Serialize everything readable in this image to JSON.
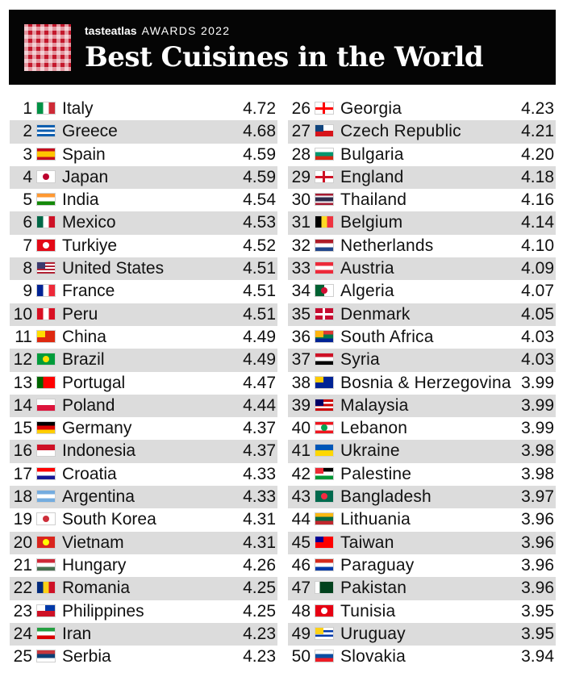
{
  "header": {
    "brand_name": "tasteatlas",
    "brand_sub": "AWARDS 2022",
    "title": "Best Cuisines in the World"
  },
  "chart_data": {
    "type": "table",
    "title": "Best Cuisines in the World",
    "columns": [
      "rank",
      "country",
      "score"
    ],
    "rows": [
      {
        "rank": 1,
        "country": "Italy",
        "score": "4.72",
        "flag": [
          "#009246",
          "#ffffff",
          "#ce2b37"
        ],
        "dir": "v"
      },
      {
        "rank": 2,
        "country": "Greece",
        "score": "4.68",
        "flag": [
          "#0d5eaf",
          "#ffffff",
          "#0d5eaf",
          "#ffffff",
          "#0d5eaf"
        ],
        "dir": "h"
      },
      {
        "rank": 3,
        "country": "Spain",
        "score": "4.59",
        "flag": [
          "#c60b1e",
          "#ffc400",
          "#ffc400",
          "#c60b1e"
        ],
        "dir": "h"
      },
      {
        "rank": 4,
        "country": "Japan",
        "score": "4.59",
        "flag": [
          "#ffffff"
        ],
        "dir": "h",
        "disc": "#bc002d"
      },
      {
        "rank": 5,
        "country": "India",
        "score": "4.54",
        "flag": [
          "#ff9933",
          "#ffffff",
          "#138808"
        ],
        "dir": "h"
      },
      {
        "rank": 6,
        "country": "Mexico",
        "score": "4.53",
        "flag": [
          "#006847",
          "#ffffff",
          "#ce1126"
        ],
        "dir": "v"
      },
      {
        "rank": 7,
        "country": "Turkiye",
        "score": "4.52",
        "flag": [
          "#e30a17"
        ],
        "dir": "h",
        "disc": "#ffffff"
      },
      {
        "rank": 8,
        "country": "United States",
        "score": "4.51",
        "flag": [
          "#b22234",
          "#ffffff",
          "#b22234",
          "#ffffff",
          "#b22234",
          "#ffffff",
          "#b22234"
        ],
        "dir": "h",
        "canton": "#3c3b6e"
      },
      {
        "rank": 9,
        "country": "France",
        "score": "4.51",
        "flag": [
          "#002395",
          "#ffffff",
          "#ed2939"
        ],
        "dir": "v"
      },
      {
        "rank": 10,
        "country": "Peru",
        "score": "4.51",
        "flag": [
          "#d91023",
          "#ffffff",
          "#d91023"
        ],
        "dir": "v"
      },
      {
        "rank": 11,
        "country": "China",
        "score": "4.49",
        "flag": [
          "#de2910"
        ],
        "dir": "h",
        "canton": "#ffde00"
      },
      {
        "rank": 12,
        "country": "Brazil",
        "score": "4.49",
        "flag": [
          "#009c3b"
        ],
        "dir": "h",
        "disc": "#ffdf00"
      },
      {
        "rank": 13,
        "country": "Portugal",
        "score": "4.47",
        "flag": [
          "#006600",
          "#ff0000",
          "#ff0000"
        ],
        "dir": "v"
      },
      {
        "rank": 14,
        "country": "Poland",
        "score": "4.44",
        "flag": [
          "#ffffff",
          "#dc143c"
        ],
        "dir": "h"
      },
      {
        "rank": 15,
        "country": "Germany",
        "score": "4.37",
        "flag": [
          "#000000",
          "#dd0000",
          "#ffce00"
        ],
        "dir": "h"
      },
      {
        "rank": 16,
        "country": "Indonesia",
        "score": "4.37",
        "flag": [
          "#ce1126",
          "#ffffff"
        ],
        "dir": "h"
      },
      {
        "rank": 17,
        "country": "Croatia",
        "score": "4.33",
        "flag": [
          "#ff0000",
          "#ffffff",
          "#171796"
        ],
        "dir": "h"
      },
      {
        "rank": 18,
        "country": "Argentina",
        "score": "4.33",
        "flag": [
          "#74acdf",
          "#ffffff",
          "#74acdf"
        ],
        "dir": "h"
      },
      {
        "rank": 19,
        "country": "South Korea",
        "score": "4.31",
        "flag": [
          "#ffffff"
        ],
        "dir": "h",
        "disc": "#cd2e3a"
      },
      {
        "rank": 20,
        "country": "Vietnam",
        "score": "4.31",
        "flag": [
          "#da251d"
        ],
        "dir": "h",
        "disc": "#ffff00"
      },
      {
        "rank": 21,
        "country": "Hungary",
        "score": "4.26",
        "flag": [
          "#ce2939",
          "#ffffff",
          "#477050"
        ],
        "dir": "h"
      },
      {
        "rank": 22,
        "country": "Romania",
        "score": "4.25",
        "flag": [
          "#002b7f",
          "#fcd116",
          "#ce1126"
        ],
        "dir": "v"
      },
      {
        "rank": 23,
        "country": "Philippines",
        "score": "4.25",
        "flag": [
          "#0038a8",
          "#ce1126"
        ],
        "dir": "h",
        "canton": "#ffffff"
      },
      {
        "rank": 24,
        "country": "Iran",
        "score": "4.23",
        "flag": [
          "#239f40",
          "#ffffff",
          "#da0000"
        ],
        "dir": "h"
      },
      {
        "rank": 25,
        "country": "Serbia",
        "score": "4.23",
        "flag": [
          "#c6363c",
          "#0c4076",
          "#ffffff"
        ],
        "dir": "h"
      },
      {
        "rank": 26,
        "country": "Georgia",
        "score": "4.23",
        "flag": [
          "#ffffff"
        ],
        "dir": "h",
        "cross": "#ff0000"
      },
      {
        "rank": 27,
        "country": "Czech Republic",
        "score": "4.21",
        "flag": [
          "#ffffff",
          "#d7141a"
        ],
        "dir": "h",
        "canton": "#11457e"
      },
      {
        "rank": 28,
        "country": "Bulgaria",
        "score": "4.20",
        "flag": [
          "#ffffff",
          "#00966e",
          "#d62612"
        ],
        "dir": "h"
      },
      {
        "rank": 29,
        "country": "England",
        "score": "4.18",
        "flag": [
          "#ffffff"
        ],
        "dir": "h",
        "cross": "#ce1124"
      },
      {
        "rank": 30,
        "country": "Thailand",
        "score": "4.16",
        "flag": [
          "#a51931",
          "#f4f5f8",
          "#2d2a4a",
          "#2d2a4a",
          "#f4f5f8",
          "#a51931"
        ],
        "dir": "h"
      },
      {
        "rank": 31,
        "country": "Belgium",
        "score": "4.14",
        "flag": [
          "#000000",
          "#fdda24",
          "#ef3340"
        ],
        "dir": "v"
      },
      {
        "rank": 32,
        "country": "Netherlands",
        "score": "4.10",
        "flag": [
          "#ae1c28",
          "#ffffff",
          "#21468b"
        ],
        "dir": "h"
      },
      {
        "rank": 33,
        "country": "Austria",
        "score": "4.09",
        "flag": [
          "#ed2939",
          "#ffffff",
          "#ed2939"
        ],
        "dir": "h"
      },
      {
        "rank": 34,
        "country": "Algeria",
        "score": "4.07",
        "flag": [
          "#006233",
          "#ffffff"
        ],
        "dir": "v",
        "disc": "#d21034"
      },
      {
        "rank": 35,
        "country": "Denmark",
        "score": "4.05",
        "flag": [
          "#c60c30"
        ],
        "dir": "h",
        "cross": "#ffffff"
      },
      {
        "rank": 36,
        "country": "South Africa",
        "score": "4.03",
        "flag": [
          "#de3831",
          "#007a4d",
          "#002395"
        ],
        "dir": "h",
        "canton": "#ffb612"
      },
      {
        "rank": 37,
        "country": "Syria",
        "score": "4.03",
        "flag": [
          "#ce1126",
          "#ffffff",
          "#000000"
        ],
        "dir": "h"
      },
      {
        "rank": 38,
        "country": "Bosnia & Herzegovina",
        "score": "3.99",
        "flag": [
          "#002395"
        ],
        "dir": "h",
        "canton": "#fecb00"
      },
      {
        "rank": 39,
        "country": "Malaysia",
        "score": "3.99",
        "flag": [
          "#cc0001",
          "#ffffff",
          "#cc0001",
          "#ffffff",
          "#cc0001"
        ],
        "dir": "h",
        "canton": "#010066"
      },
      {
        "rank": 40,
        "country": "Lebanon",
        "score": "3.99",
        "flag": [
          "#ee161f",
          "#ffffff",
          "#ffffff",
          "#ee161f"
        ],
        "dir": "h",
        "disc": "#00a651"
      },
      {
        "rank": 41,
        "country": "Ukraine",
        "score": "3.98",
        "flag": [
          "#0057b7",
          "#ffd700"
        ],
        "dir": "h"
      },
      {
        "rank": 42,
        "country": "Palestine",
        "score": "3.98",
        "flag": [
          "#000000",
          "#ffffff",
          "#009736"
        ],
        "dir": "h",
        "canton": "#ee2a35"
      },
      {
        "rank": 43,
        "country": "Bangladesh",
        "score": "3.97",
        "flag": [
          "#006a4e"
        ],
        "dir": "h",
        "disc": "#f42a41"
      },
      {
        "rank": 44,
        "country": "Lithuania",
        "score": "3.96",
        "flag": [
          "#fdb913",
          "#006a44",
          "#c1272d"
        ],
        "dir": "h"
      },
      {
        "rank": 45,
        "country": "Taiwan",
        "score": "3.96",
        "flag": [
          "#fe0000"
        ],
        "dir": "h",
        "canton": "#000095"
      },
      {
        "rank": 46,
        "country": "Paraguay",
        "score": "3.96",
        "flag": [
          "#d52b1e",
          "#ffffff",
          "#0038a8"
        ],
        "dir": "h"
      },
      {
        "rank": 47,
        "country": "Pakistan",
        "score": "3.96",
        "flag": [
          "#ffffff",
          "#01411c",
          "#01411c",
          "#01411c"
        ],
        "dir": "v"
      },
      {
        "rank": 48,
        "country": "Tunisia",
        "score": "3.95",
        "flag": [
          "#e70013"
        ],
        "dir": "h",
        "disc": "#ffffff"
      },
      {
        "rank": 49,
        "country": "Uruguay",
        "score": "3.95",
        "flag": [
          "#ffffff",
          "#0038a8",
          "#ffffff",
          "#0038a8",
          "#ffffff"
        ],
        "dir": "h",
        "canton": "#fcd116"
      },
      {
        "rank": 50,
        "country": "Slovakia",
        "score": "3.94",
        "flag": [
          "#ffffff",
          "#0b4ea2",
          "#ee1c25"
        ],
        "dir": "h"
      }
    ]
  }
}
